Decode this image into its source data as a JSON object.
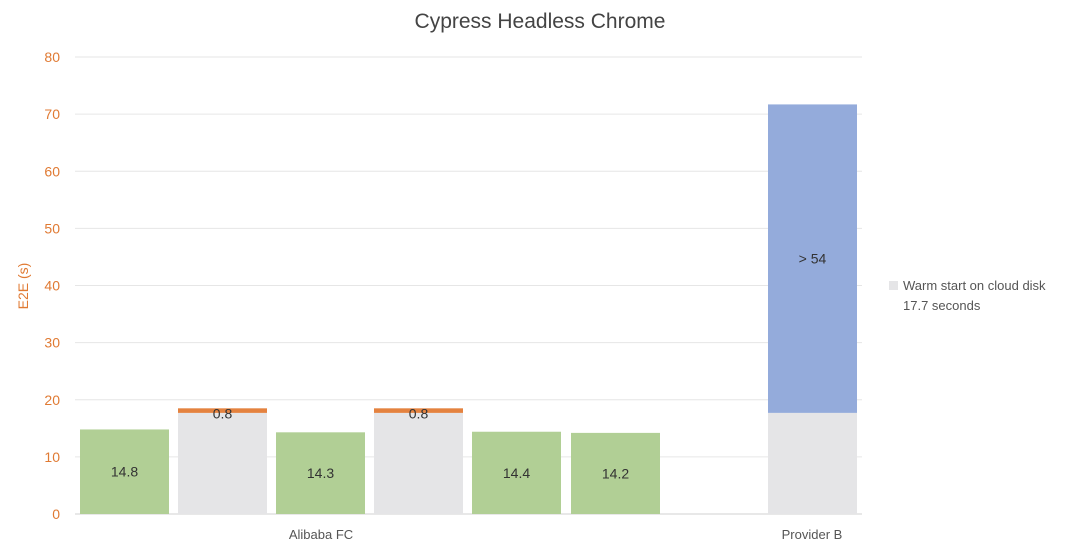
{
  "chart_data": {
    "type": "bar",
    "stacked": true,
    "title": "Cypress Headless Chrome",
    "xlabel": "",
    "ylabel": "E2E (s)",
    "ylim": [
      0,
      80
    ],
    "yticks": [
      0,
      10,
      20,
      30,
      40,
      50,
      60,
      70,
      80
    ],
    "grid": true,
    "groups": [
      "Alibaba FC",
      "Provider B"
    ],
    "bars": [
      {
        "group": "Alibaba FC",
        "segments": [
          {
            "series": "cold",
            "value": 14.8,
            "label": "14.8"
          }
        ]
      },
      {
        "group": "Alibaba FC",
        "segments": [
          {
            "series": "warm",
            "value": 17.7
          },
          {
            "series": "extra",
            "value": 0.8,
            "label": "0.8"
          }
        ]
      },
      {
        "group": "Alibaba FC",
        "segments": [
          {
            "series": "cold",
            "value": 14.3,
            "label": "14.3"
          }
        ]
      },
      {
        "group": "Alibaba FC",
        "segments": [
          {
            "series": "warm",
            "value": 17.7
          },
          {
            "series": "extra",
            "value": 0.8,
            "label": "0.8"
          }
        ]
      },
      {
        "group": "Alibaba FC",
        "segments": [
          {
            "series": "cold",
            "value": 14.4,
            "label": "14.4"
          }
        ]
      },
      {
        "group": "Alibaba FC",
        "segments": [
          {
            "series": "cold",
            "value": 14.2,
            "label": "14.2"
          }
        ]
      },
      {
        "group": "Provider B",
        "segments": [
          {
            "series": "warm",
            "value": 17.7
          },
          {
            "series": "provider",
            "value": 54,
            "label": "> 54"
          }
        ]
      }
    ],
    "series_colors": {
      "cold": "#b1cf95",
      "warm": "#e5e5e7",
      "extra": "#e4823f",
      "provider": "#94abdb"
    },
    "legend": {
      "placement": "right",
      "entries": [
        {
          "series": "warm",
          "line1": "Warm start on cloud disk",
          "line2": "17.7 seconds"
        }
      ]
    },
    "axis_color": "#e07a33"
  }
}
